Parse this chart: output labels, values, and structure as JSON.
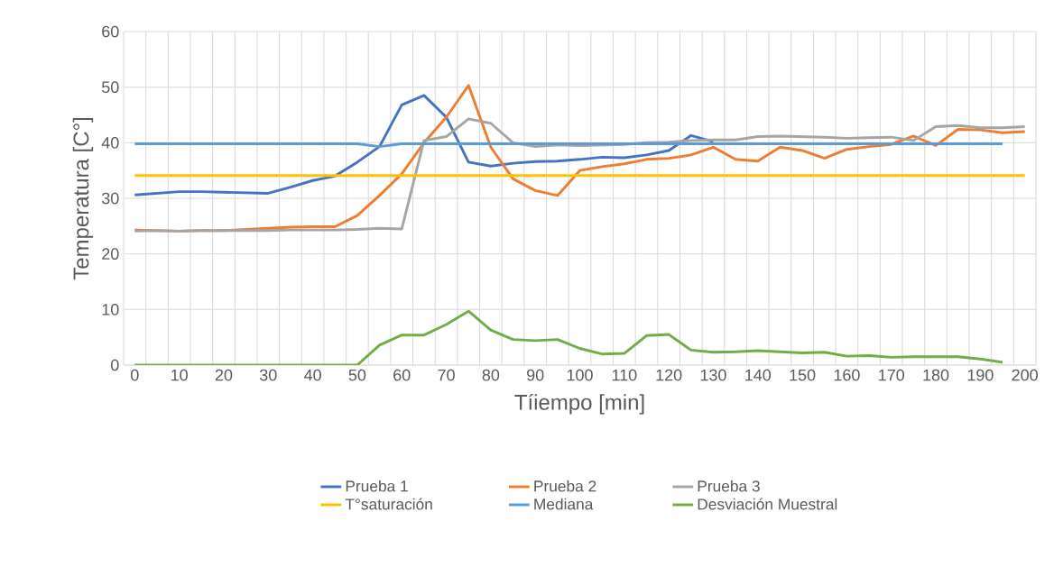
{
  "chart_data": {
    "type": "line",
    "xlabel": "Tíiempo [min]",
    "ylabel": "Temperatura [C°]",
    "categories": [
      "0",
      null,
      "10",
      null,
      "20",
      null,
      "30",
      null,
      "40",
      null,
      "50",
      null,
      "60",
      null,
      "70",
      null,
      "80",
      null,
      "90",
      null,
      "100",
      null,
      "110",
      null,
      "120",
      null,
      "130",
      null,
      "140",
      null,
      "150",
      null,
      "160",
      null,
      "170",
      null,
      "180",
      null,
      "190",
      null,
      "200"
    ],
    "series": [
      {
        "name": "Prueba 1",
        "color": "#4472c4",
        "values": [
          30.6,
          30.9,
          31.2,
          31.2,
          31.1,
          31.0,
          30.9,
          32.0,
          33.2,
          34.0,
          36.5,
          39.3,
          46.8,
          48.5,
          44.6,
          36.5,
          35.8,
          36.3,
          36.6,
          36.7,
          37.0,
          37.4,
          37.3,
          37.8,
          38.6,
          41.3,
          40.2,
          null,
          null,
          null,
          null,
          null,
          null,
          null,
          null,
          null,
          null,
          null,
          null,
          null,
          null
        ]
      },
      {
        "name": "Prueba 2",
        "color": "#ed7d31",
        "values": [
          24.3,
          24.2,
          24.1,
          24.2,
          24.2,
          24.4,
          24.6,
          24.8,
          24.9,
          24.9,
          26.9,
          30.5,
          34.4,
          40.0,
          44.6,
          50.3,
          39.2,
          33.5,
          31.4,
          30.5,
          35.0,
          35.7,
          36.2,
          37.0,
          37.2,
          37.8,
          39.2,
          37.0,
          36.7,
          39.2,
          38.6,
          37.2,
          38.8,
          39.3,
          39.7,
          41.2,
          39.5,
          42.4,
          42.3,
          41.8,
          42.0
        ]
      },
      {
        "name": "Prueba 3",
        "color": "#a5a5a5",
        "values": [
          24.1,
          24.2,
          24.1,
          24.2,
          24.2,
          24.2,
          24.2,
          24.3,
          24.3,
          24.3,
          24.4,
          24.6,
          24.5,
          40.4,
          41.1,
          44.3,
          43.5,
          40.0,
          39.3,
          39.6,
          39.5,
          39.6,
          39.7,
          40.0,
          40.1,
          40.4,
          40.5,
          40.5,
          41.1,
          41.2,
          41.1,
          41.0,
          40.8,
          40.9,
          41.0,
          40.4,
          42.9,
          43.1,
          42.7,
          42.7,
          42.9
        ]
      },
      {
        "name": "T°saturación",
        "color": "#ffc000",
        "values": [
          34.1,
          34.1,
          34.1,
          34.1,
          34.1,
          34.1,
          34.1,
          34.1,
          34.1,
          34.1,
          34.1,
          34.1,
          34.1,
          34.1,
          34.1,
          34.1,
          34.1,
          34.1,
          34.1,
          34.1,
          34.1,
          34.1,
          34.1,
          34.1,
          34.1,
          34.1,
          34.1,
          34.1,
          34.1,
          34.1,
          34.1,
          34.1,
          34.1,
          34.1,
          34.1,
          34.1,
          34.1,
          34.1,
          34.1,
          34.1,
          34.1
        ]
      },
      {
        "name": "Mediana",
        "color": "#5b9bd5",
        "values": [
          39.8,
          39.8,
          39.8,
          39.8,
          39.8,
          39.8,
          39.8,
          39.8,
          39.8,
          39.8,
          39.8,
          39.3,
          39.8,
          39.8,
          39.8,
          39.8,
          39.8,
          39.8,
          39.8,
          39.8,
          39.8,
          39.8,
          39.8,
          39.8,
          39.8,
          39.8,
          39.8,
          39.8,
          39.8,
          39.8,
          39.8,
          39.8,
          39.8,
          39.8,
          39.8,
          39.8,
          39.8,
          39.8,
          39.8,
          39.8,
          null
        ]
      },
      {
        "name": "Desviación Muestral",
        "color": "#70ad47",
        "values": [
          0,
          0,
          0,
          0,
          0,
          0,
          0,
          0,
          0,
          0,
          0,
          3.6,
          5.4,
          5.4,
          7.3,
          9.7,
          6.3,
          4.6,
          4.4,
          4.6,
          3.0,
          2.0,
          2.1,
          5.3,
          5.5,
          2.7,
          2.3,
          2.4,
          2.6,
          2.4,
          2.2,
          2.3,
          1.6,
          1.7,
          1.4,
          1.5,
          1.5,
          1.5,
          1.1,
          0.5,
          null
        ]
      }
    ],
    "ylim": [
      0,
      60
    ],
    "yticks": [
      0,
      10,
      20,
      30,
      40,
      50,
      60
    ],
    "grid": true,
    "legend": "bottom",
    "marker": "none",
    "line_style": "solid"
  }
}
